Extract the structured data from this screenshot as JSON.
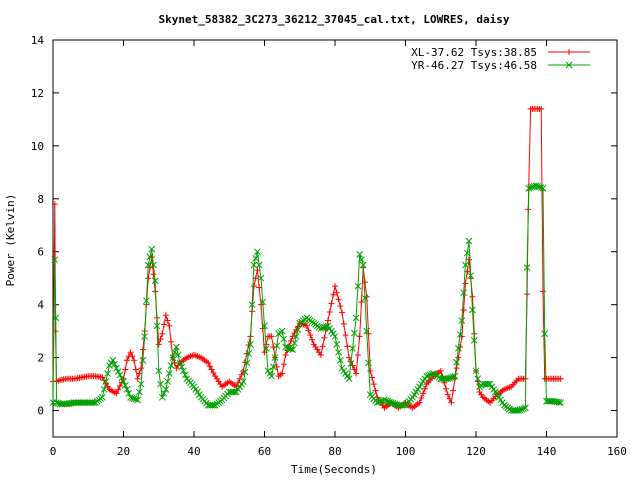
{
  "chart_data": {
    "type": "line",
    "title": "Skynet_58382_3C273_36212_37045_cal.txt, LOWRES, daisy",
    "xlabel": "Time(Seconds)",
    "ylabel": "Power (Kelvin)",
    "xlim": [
      0,
      160
    ],
    "ylim": [
      -1,
      14
    ],
    "xticks": [
      0,
      20,
      40,
      60,
      80,
      100,
      120,
      140,
      160
    ],
    "yticks": [
      0,
      2,
      4,
      6,
      8,
      10,
      12,
      14
    ],
    "grid": false,
    "legend_position": "top-right",
    "series": [
      {
        "name": "XL-37.62 Tsys:38.85",
        "color": "#ff0000",
        "marker": "plus",
        "points": [
          [
            0,
            1.1
          ],
          [
            0.5,
            7.8
          ],
          [
            0.7,
            3.0
          ],
          [
            1,
            1.1
          ],
          [
            2,
            1.15
          ],
          [
            4,
            1.2
          ],
          [
            6,
            1.2
          ],
          [
            8,
            1.25
          ],
          [
            10,
            1.3
          ],
          [
            12,
            1.3
          ],
          [
            14,
            1.25
          ],
          [
            16,
            0.8
          ],
          [
            18,
            0.65
          ],
          [
            20,
            1.2
          ],
          [
            21,
            1.9
          ],
          [
            22,
            2.2
          ],
          [
            23,
            1.9
          ],
          [
            24,
            1.2
          ],
          [
            25,
            1.6
          ],
          [
            26,
            3.0
          ],
          [
            27,
            5.0
          ],
          [
            28,
            5.8
          ],
          [
            29,
            4.5
          ],
          [
            30,
            2.5
          ],
          [
            31,
            2.9
          ],
          [
            32,
            3.6
          ],
          [
            33,
            3.2
          ],
          [
            34,
            2.0
          ],
          [
            35,
            1.6
          ],
          [
            36,
            1.8
          ],
          [
            38,
            2.0
          ],
          [
            40,
            2.1
          ],
          [
            42,
            2.0
          ],
          [
            44,
            1.8
          ],
          [
            46,
            1.3
          ],
          [
            48,
            0.9
          ],
          [
            50,
            1.1
          ],
          [
            52,
            0.9
          ],
          [
            54,
            1.5
          ],
          [
            56,
            2.8
          ],
          [
            57,
            4.7
          ],
          [
            58,
            5.3
          ],
          [
            59,
            4.0
          ],
          [
            60,
            2.2
          ],
          [
            61,
            2.8
          ],
          [
            62,
            2.8
          ],
          [
            63,
            2.0
          ],
          [
            64,
            1.3
          ],
          [
            65,
            1.4
          ],
          [
            66,
            2.1
          ],
          [
            68,
            2.8
          ],
          [
            70,
            3.3
          ],
          [
            72,
            3.2
          ],
          [
            74,
            2.5
          ],
          [
            76,
            2.1
          ],
          [
            78,
            3.4
          ],
          [
            80,
            4.7
          ],
          [
            82,
            3.7
          ],
          [
            84,
            2.0
          ],
          [
            86,
            1.4
          ],
          [
            87,
            2.8
          ],
          [
            88,
            5.4
          ],
          [
            89,
            4.3
          ],
          [
            90,
            1.5
          ],
          [
            92,
            0.5
          ],
          [
            94,
            0.1
          ],
          [
            96,
            0.3
          ],
          [
            98,
            0.1
          ],
          [
            100,
            0.3
          ],
          [
            102,
            0.1
          ],
          [
            104,
            0.3
          ],
          [
            106,
            1.0
          ],
          [
            108,
            1.3
          ],
          [
            110,
            1.5
          ],
          [
            112,
            0.6
          ],
          [
            113,
            0.3
          ],
          [
            114,
            1.2
          ],
          [
            116,
            2.8
          ],
          [
            117,
            4.8
          ],
          [
            118,
            5.7
          ],
          [
            119,
            4.3
          ],
          [
            120,
            1.5
          ],
          [
            121,
            0.7
          ],
          [
            122,
            0.5
          ],
          [
            124,
            0.3
          ],
          [
            126,
            0.6
          ],
          [
            128,
            0.8
          ],
          [
            130,
            0.9
          ],
          [
            132,
            1.2
          ],
          [
            134,
            1.2
          ],
          [
            134.5,
            4.4
          ],
          [
            134.8,
            7.6
          ],
          [
            135.5,
            11.4
          ],
          [
            137,
            11.4
          ],
          [
            138.5,
            11.4
          ],
          [
            139,
            4.5
          ],
          [
            139.5,
            1.2
          ],
          [
            140,
            1.2
          ],
          [
            142,
            1.2
          ],
          [
            144,
            1.2
          ]
        ]
      },
      {
        "name": "YR-46.27 Tsys:46.58",
        "color": "#00a000",
        "marker": "cross",
        "points": [
          [
            0,
            0.3
          ],
          [
            0.5,
            5.7
          ],
          [
            0.8,
            3.5
          ],
          [
            1,
            0.3
          ],
          [
            2,
            0.25
          ],
          [
            4,
            0.25
          ],
          [
            6,
            0.3
          ],
          [
            8,
            0.3
          ],
          [
            10,
            0.3
          ],
          [
            12,
            0.3
          ],
          [
            14,
            0.5
          ],
          [
            16,
            1.7
          ],
          [
            17,
            1.9
          ],
          [
            18,
            1.6
          ],
          [
            20,
            1.1
          ],
          [
            22,
            0.5
          ],
          [
            24,
            0.4
          ],
          [
            25,
            1.0
          ],
          [
            26,
            2.8
          ],
          [
            27,
            5.5
          ],
          [
            28,
            6.1
          ],
          [
            29,
            4.9
          ],
          [
            30,
            1.5
          ],
          [
            31,
            0.5
          ],
          [
            32,
            0.8
          ],
          [
            34,
            2.0
          ],
          [
            35,
            2.4
          ],
          [
            36,
            1.8
          ],
          [
            38,
            1.2
          ],
          [
            40,
            0.9
          ],
          [
            42,
            0.5
          ],
          [
            44,
            0.2
          ],
          [
            46,
            0.2
          ],
          [
            48,
            0.4
          ],
          [
            50,
            0.7
          ],
          [
            52,
            0.7
          ],
          [
            54,
            1.1
          ],
          [
            56,
            2.5
          ],
          [
            57,
            5.5
          ],
          [
            58,
            6.0
          ],
          [
            59,
            5.0
          ],
          [
            60,
            3.2
          ],
          [
            61,
            1.5
          ],
          [
            62,
            1.3
          ],
          [
            63,
            2.0
          ],
          [
            64,
            2.9
          ],
          [
            65,
            3.0
          ],
          [
            66,
            2.4
          ],
          [
            68,
            2.3
          ],
          [
            70,
            3.3
          ],
          [
            72,
            3.5
          ],
          [
            74,
            3.3
          ],
          [
            76,
            3.1
          ],
          [
            78,
            3.2
          ],
          [
            80,
            2.8
          ],
          [
            82,
            1.6
          ],
          [
            84,
            1.2
          ],
          [
            86,
            3.5
          ],
          [
            87,
            5.9
          ],
          [
            88,
            5.5
          ],
          [
            89,
            3.0
          ],
          [
            90,
            0.6
          ],
          [
            92,
            0.3
          ],
          [
            94,
            0.4
          ],
          [
            96,
            0.3
          ],
          [
            98,
            0.2
          ],
          [
            100,
            0.2
          ],
          [
            102,
            0.5
          ],
          [
            104,
            0.9
          ],
          [
            106,
            1.3
          ],
          [
            108,
            1.4
          ],
          [
            110,
            1.2
          ],
          [
            112,
            1.2
          ],
          [
            114,
            1.3
          ],
          [
            116,
            3.4
          ],
          [
            117,
            5.5
          ],
          [
            118,
            6.4
          ],
          [
            119,
            3.8
          ],
          [
            120,
            1.5
          ],
          [
            121,
            0.9
          ],
          [
            122,
            1.0
          ],
          [
            124,
            1.0
          ],
          [
            126,
            0.6
          ],
          [
            128,
            0.2
          ],
          [
            130,
            0.0
          ],
          [
            132,
            0.0
          ],
          [
            134,
            0.1
          ],
          [
            134.5,
            5.4
          ],
          [
            135,
            8.4
          ],
          [
            137,
            8.5
          ],
          [
            139,
            8.4
          ],
          [
            139.5,
            2.9
          ],
          [
            140,
            0.35
          ],
          [
            142,
            0.35
          ],
          [
            144,
            0.3
          ]
        ]
      }
    ]
  }
}
